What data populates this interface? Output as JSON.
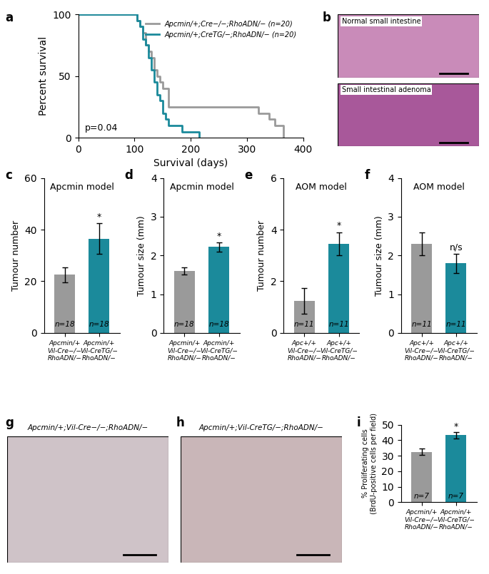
{
  "chart_data": [
    {
      "panel": "a",
      "type": "line",
      "xlabel": "Survival (days)",
      "ylabel": "Percent survival",
      "xlim": [
        0,
        400
      ],
      "xticks": [
        0,
        100,
        200,
        300,
        400
      ],
      "ylim": [
        0,
        100
      ],
      "yticks": [
        0,
        50,
        100
      ],
      "legend": "upper right",
      "line_style": "step",
      "annotations": [
        {
          "text": "p=0.04"
        }
      ],
      "series": [
        {
          "name": "Apcmin/+;Cre−/−;RhoADN/− (n=20)",
          "color": "#9a9a9a",
          "x": [
            0,
            100,
            105,
            110,
            115,
            120,
            125,
            130,
            135,
            140,
            145,
            150,
            160,
            305,
            320,
            340,
            350,
            365
          ],
          "values": [
            100,
            100,
            95,
            90,
            85,
            75,
            70,
            65,
            55,
            50,
            45,
            40,
            25,
            25,
            20,
            15,
            10,
            0
          ]
        },
        {
          "name": "Apcmin/+;CreTG/−;RhoADN/− (n=20)",
          "color": "#1b8a9b",
          "x": [
            0,
            100,
            105,
            110,
            115,
            120,
            125,
            130,
            135,
            140,
            145,
            150,
            155,
            160,
            185,
            215
          ],
          "values": [
            100,
            100,
            95,
            90,
            80,
            75,
            65,
            55,
            45,
            35,
            30,
            20,
            15,
            10,
            5,
            0
          ]
        }
      ]
    },
    {
      "panel": "c",
      "type": "bar",
      "title": "Apcmin model",
      "ylabel": "Tumour number",
      "categories": [
        "Apcmin/+\nVil-Cre−/−\nRhoADN/−",
        "Apcmin/+\nVil-CreTG/−\nRhoADN/−"
      ],
      "values": [
        22.5,
        36.5
      ],
      "errors": [
        3,
        6
      ],
      "colors": [
        "#9a9a9a",
        "#1b8a9b"
      ],
      "ylim": [
        0,
        60
      ],
      "yticks": [
        0,
        20,
        40,
        60
      ],
      "bar_labels": [
        "n=18",
        "n=18"
      ],
      "annotations": [
        {
          "text": "*",
          "category": "Apcmin/+\nVil-CreTG/−\nRhoADN/−"
        }
      ]
    },
    {
      "panel": "d",
      "type": "bar",
      "title": "Apcmin model",
      "ylabel": "Tumour size (mm)",
      "categories": [
        "Apcmin/+\nVil-Cre−/−\nRhoADN/−",
        "Apcmin/+\nVil-CreTG/−\nRhoADN/−"
      ],
      "values": [
        1.6,
        2.22
      ],
      "errors": [
        0.1,
        0.12
      ],
      "colors": [
        "#9a9a9a",
        "#1b8a9b"
      ],
      "ylim": [
        0,
        4
      ],
      "yticks": [
        0,
        1,
        2,
        3,
        4
      ],
      "bar_labels": [
        "n=18",
        "n=18"
      ],
      "annotations": [
        {
          "text": "*",
          "category": "Apcmin/+\nVil-CreTG/−\nRhoADN/−"
        }
      ]
    },
    {
      "panel": "e",
      "type": "bar",
      "title": "AOM model",
      "ylabel": "Tumour number",
      "categories": [
        "Apc+/+\nVil-Cre−/−\nRhoADN/−",
        "Apc+/+\nVil-CreTG/−\nRhoADN/−"
      ],
      "values": [
        1.25,
        3.45
      ],
      "errors": [
        0.5,
        0.45
      ],
      "colors": [
        "#9a9a9a",
        "#1b8a9b"
      ],
      "ylim": [
        0,
        6
      ],
      "yticks": [
        0,
        2,
        4,
        6
      ],
      "bar_labels": [
        "n=11",
        "n=11"
      ],
      "annotations": [
        {
          "text": "*",
          "category": "Apc+/+\nVil-CreTG/−\nRhoADN/−"
        }
      ]
    },
    {
      "panel": "f",
      "type": "bar",
      "title": "AOM model",
      "ylabel": "Tumour size (mm)",
      "categories": [
        "Apc+/+\nVil-Cre−/−\nRhoADN/−",
        "Apc+/+\nVil-CreTG/−\nRhoADN/−"
      ],
      "values": [
        2.3,
        1.8
      ],
      "errors": [
        0.3,
        0.25
      ],
      "colors": [
        "#9a9a9a",
        "#1b8a9b"
      ],
      "ylim": [
        0,
        4
      ],
      "yticks": [
        0,
        1,
        2,
        3,
        4
      ],
      "bar_labels": [
        "n=11",
        "n=11"
      ],
      "annotations": [
        {
          "text": "n/s",
          "category": "Apc+/+\nVil-CreTG/−\nRhoADN/−"
        }
      ]
    },
    {
      "panel": "i",
      "type": "bar",
      "ylabel": "% Proliferating cells\n(BrdU-positive cells per field)",
      "categories": [
        "Apcmin/+\nVil-Cre−/−\nRhoADN/−",
        "Apcmin/+\nVil-CreTG/−\nRhoADN/−"
      ],
      "values": [
        32.5,
        43.2
      ],
      "errors": [
        2,
        2
      ],
      "colors": [
        "#9a9a9a",
        "#1b8a9b"
      ],
      "ylim": [
        0,
        50
      ],
      "yticks": [
        0,
        10,
        20,
        30,
        40,
        50
      ],
      "bar_labels": [
        "n=7",
        "n=7"
      ],
      "annotations": [
        {
          "text": "*",
          "category": "Apcmin/+\nVil-CreTG/−\nRhoADN/−"
        }
      ]
    }
  ],
  "images": [
    {
      "panel": "b",
      "captions": [
        "Normal small intestine",
        "Small intestinal adenoma"
      ]
    },
    {
      "panel": "g",
      "title": "Apcmin/+;Vil-Cre−/−;RhoADN/−"
    },
    {
      "panel": "h",
      "title": "Apcmin/+;Vil-CreTG/−;RhoADN/−"
    }
  ]
}
